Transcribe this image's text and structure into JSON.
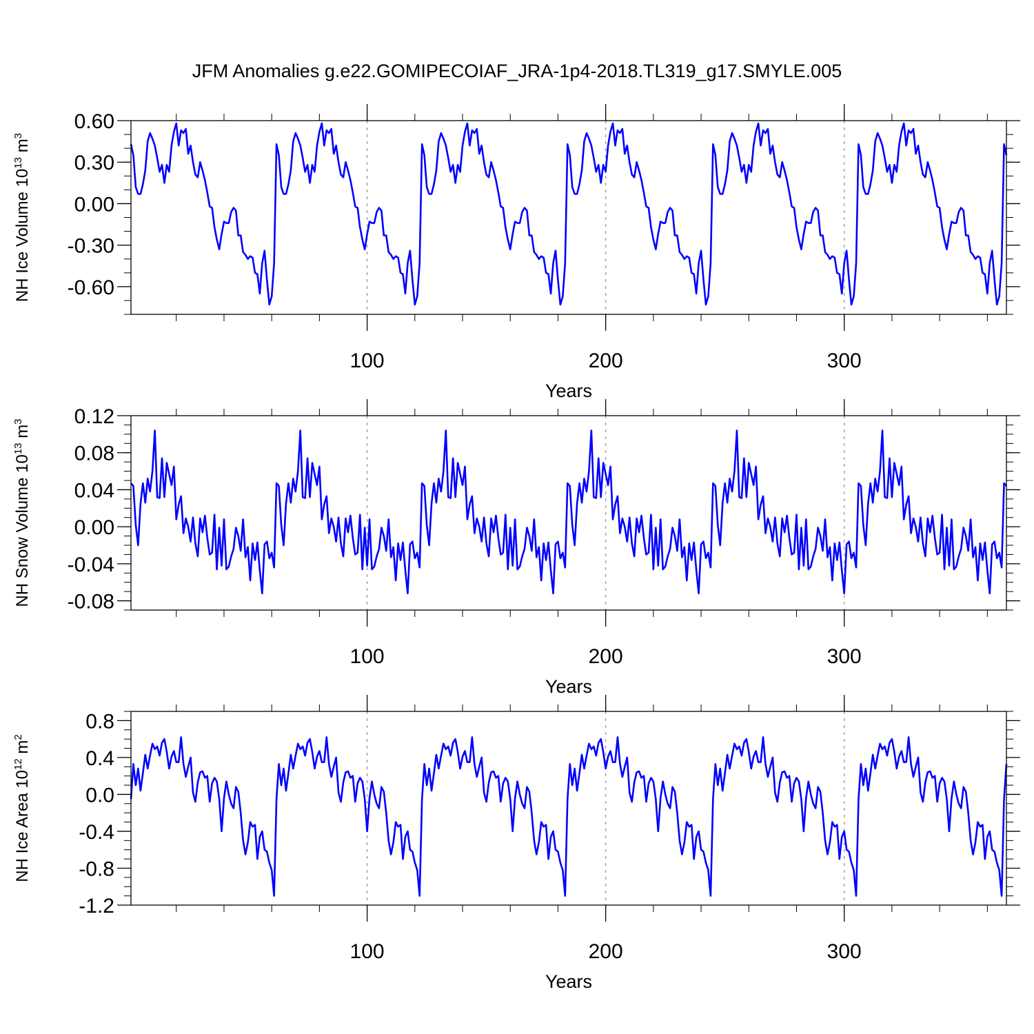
{
  "title": "JFM Anomalies g.e22.GOMIPECOIAF_JRA-1p4-2018.TL319_g17.SMYLE.005",
  "colors": {
    "series": "#0000ff",
    "axis": "#000000",
    "grid": "#a0a0a0"
  },
  "chart_data": [
    {
      "type": "line",
      "panel": "nh-ice-volume",
      "ylabel_main": "NH Ice Volume 10",
      "ylabel_exp": "13",
      "ylabel_unit": " m",
      "ylabel_unit_exp": "3",
      "xlabel": "Years",
      "xlim": [
        1,
        368
      ],
      "ylim": [
        -0.8,
        0.6
      ],
      "yticks": [
        0.6,
        0.3,
        0.0,
        -0.3,
        -0.6
      ],
      "ytick_labels": [
        "0.60",
        "0.30",
        "0.00",
        "-0.30",
        "-0.60"
      ],
      "yminor_step": 0.1,
      "xticks": [
        100,
        200,
        300
      ],
      "xtick_labels": [
        "100",
        "200",
        "300"
      ],
      "xminor_step": 20,
      "grid_x": [
        100,
        200,
        300
      ],
      "period": 61,
      "cycle_values": [
        0.43,
        0.35,
        0.12,
        0.07,
        0.07,
        0.14,
        0.24,
        0.45,
        0.51,
        0.47,
        0.42,
        0.33,
        0.23,
        0.28,
        0.15,
        0.28,
        0.23,
        0.42,
        0.52,
        0.58,
        0.42,
        0.53,
        0.51,
        0.54,
        0.36,
        0.42,
        0.3,
        0.21,
        0.19,
        0.3,
        0.24,
        0.17,
        0.08,
        -0.02,
        -0.03,
        -0.17,
        -0.26,
        -0.33,
        -0.22,
        -0.13,
        -0.14,
        -0.14,
        -0.06,
        -0.03,
        -0.05,
        -0.23,
        -0.23,
        -0.35,
        -0.37,
        -0.4,
        -0.38,
        -0.39,
        -0.5,
        -0.51,
        -0.65,
        -0.43,
        -0.34,
        -0.55,
        -0.73,
        -0.67,
        -0.43
      ],
      "x": [
        1,
        2,
        3,
        4,
        5,
        6,
        7,
        8,
        9,
        10,
        11,
        12,
        13,
        14,
        15,
        16,
        17,
        18,
        19,
        20,
        21,
        22,
        23,
        24,
        25,
        26,
        27,
        28,
        29,
        30,
        31,
        32,
        33,
        34,
        35,
        36,
        37,
        38,
        39,
        40,
        41,
        42,
        43,
        44,
        45,
        46,
        47,
        48,
        49,
        50,
        51,
        52,
        53,
        54,
        55,
        56,
        57,
        58,
        59,
        60,
        61,
        62,
        63,
        64,
        65,
        66,
        67,
        68,
        69,
        70,
        71,
        72,
        73,
        74,
        75,
        76,
        77,
        78,
        79,
        80,
        81,
        82,
        83,
        84,
        85,
        86,
        87,
        88,
        89,
        90,
        91,
        92,
        93,
        94,
        95,
        96,
        97,
        98,
        99,
        100,
        101,
        102,
        103,
        104,
        105,
        106,
        107,
        108,
        109,
        110,
        111,
        112,
        113,
        114,
        115,
        116,
        117,
        118,
        119,
        120,
        121,
        122,
        123,
        124,
        125,
        126,
        127,
        128,
        129,
        130,
        131,
        132,
        133,
        134,
        135,
        136,
        137,
        138,
        139,
        140,
        141,
        142,
        143,
        144,
        145,
        146,
        147,
        148,
        149,
        150,
        151,
        152,
        153,
        154,
        155,
        156,
        157,
        158,
        159,
        160,
        161,
        162,
        163,
        164,
        165,
        166,
        167,
        168,
        169,
        170,
        171,
        172,
        173,
        174,
        175,
        176,
        177,
        178,
        179,
        180,
        181,
        182,
        183,
        184,
        185,
        186,
        187,
        188,
        189,
        190,
        191,
        192,
        193,
        194,
        195,
        196,
        197,
        198,
        199,
        200,
        201,
        202,
        203,
        204,
        205,
        206,
        207,
        208,
        209,
        210,
        211,
        212,
        213,
        214,
        215,
        216,
        217,
        218,
        219,
        220,
        221,
        222,
        223,
        224,
        225,
        226,
        227,
        228,
        229,
        230,
        231,
        232,
        233,
        234,
        235,
        236,
        237,
        238,
        239,
        240,
        241,
        242,
        243,
        244,
        245,
        246,
        247,
        248,
        249,
        250,
        251,
        252,
        253,
        254,
        255,
        256,
        257,
        258,
        259,
        260,
        261,
        262,
        263,
        264,
        265,
        266,
        267,
        268,
        269,
        270,
        271,
        272,
        273,
        274,
        275,
        276,
        277,
        278,
        279,
        280,
        281,
        282,
        283,
        284,
        285,
        286,
        287,
        288,
        289,
        290,
        291,
        292,
        293,
        294,
        295,
        296,
        297,
        298,
        299,
        300,
        301,
        302,
        303,
        304,
        305,
        306,
        307,
        308,
        309,
        310,
        311,
        312,
        313,
        314,
        315,
        316,
        317,
        318,
        319,
        320,
        321,
        322,
        323,
        324,
        325,
        326,
        327,
        328,
        329,
        330,
        331,
        332,
        333,
        334,
        335,
        336,
        337,
        338,
        339,
        340,
        341,
        342,
        343,
        344,
        345,
        346,
        347,
        348,
        349,
        350,
        351,
        352,
        353,
        354,
        355,
        356,
        357,
        358,
        359,
        360,
        361,
        362,
        363,
        364,
        365,
        366,
        367,
        368
      ]
    },
    {
      "type": "line",
      "panel": "nh-snow-volume",
      "ylabel_main": "NH Snow Volume 10",
      "ylabel_exp": "13",
      "ylabel_unit": " m",
      "ylabel_unit_exp": "3",
      "xlabel": "Years",
      "xlim": [
        1,
        368
      ],
      "ylim": [
        -0.09,
        0.12
      ],
      "yticks": [
        0.12,
        0.08,
        0.04,
        0.0,
        -0.04,
        -0.08
      ],
      "ytick_labels": [
        "0.12",
        "0.08",
        "0.04",
        "0.00",
        "-0.04",
        "-0.08"
      ],
      "yminor_step": 0.01,
      "xticks": [
        100,
        200,
        300
      ],
      "xtick_labels": [
        "100",
        "200",
        "300"
      ],
      "xminor_step": 20,
      "grid_x": [
        100,
        200,
        300
      ],
      "period": 61,
      "cycle_values": [
        0.047,
        0.044,
        0.002,
        -0.02,
        0.025,
        0.047,
        0.026,
        0.052,
        0.038,
        0.06,
        0.104,
        0.032,
        0.031,
        0.074,
        0.032,
        0.069,
        0.057,
        0.045,
        0.065,
        0.008,
        0.024,
        0.033,
        -0.007,
        0.009,
        0.0,
        -0.016,
        0.01,
        -0.018,
        -0.032,
        0.009,
        -0.006,
        0.012,
        -0.012,
        -0.03,
        -0.028,
        0.013,
        -0.046,
        -0.001,
        -0.042,
        0.008,
        -0.046,
        -0.043,
        -0.032,
        -0.024,
        -0.001,
        -0.01,
        -0.026,
        0.008,
        -0.033,
        -0.022,
        -0.058,
        -0.018,
        -0.036,
        -0.017,
        -0.047,
        -0.072,
        -0.019,
        -0.016,
        -0.034,
        -0.028,
        -0.044
      ],
      "x": [
        1,
        2,
        3,
        4,
        5,
        6,
        7,
        8,
        9,
        10,
        11,
        12,
        13,
        14,
        15,
        16,
        17,
        18,
        19,
        20,
        21,
        22,
        23,
        24,
        25,
        26,
        27,
        28,
        29,
        30,
        31,
        32,
        33,
        34,
        35,
        36,
        37,
        38,
        39,
        40,
        41,
        42,
        43,
        44,
        45,
        46,
        47,
        48,
        49,
        50,
        51,
        52,
        53,
        54,
        55,
        56,
        57,
        58,
        59,
        60,
        61,
        62,
        63,
        64,
        65,
        66,
        67,
        68,
        69,
        70,
        71,
        72,
        73,
        74,
        75,
        76,
        77,
        78,
        79,
        80,
        81,
        82,
        83,
        84,
        85,
        86,
        87,
        88,
        89,
        90,
        91,
        92,
        93,
        94,
        95,
        96,
        97,
        98,
        99,
        100,
        101,
        102,
        103,
        104,
        105,
        106,
        107,
        108,
        109,
        110,
        111,
        112,
        113,
        114,
        115,
        116,
        117,
        118,
        119,
        120,
        121,
        122,
        123,
        124,
        125,
        126,
        127,
        128,
        129,
        130,
        131,
        132,
        133,
        134,
        135,
        136,
        137,
        138,
        139,
        140,
        141,
        142,
        143,
        144,
        145,
        146,
        147,
        148,
        149,
        150,
        151,
        152,
        153,
        154,
        155,
        156,
        157,
        158,
        159,
        160,
        161,
        162,
        163,
        164,
        165,
        166,
        167,
        168,
        169,
        170,
        171,
        172,
        173,
        174,
        175,
        176,
        177,
        178,
        179,
        180,
        181,
        182,
        183,
        184,
        185,
        186,
        187,
        188,
        189,
        190,
        191,
        192,
        193,
        194,
        195,
        196,
        197,
        198,
        199,
        200,
        201,
        202,
        203,
        204,
        205,
        206,
        207,
        208,
        209,
        210,
        211,
        212,
        213,
        214,
        215,
        216,
        217,
        218,
        219,
        220,
        221,
        222,
        223,
        224,
        225,
        226,
        227,
        228,
        229,
        230,
        231,
        232,
        233,
        234,
        235,
        236,
        237,
        238,
        239,
        240,
        241,
        242,
        243,
        244,
        245,
        246,
        247,
        248,
        249,
        250,
        251,
        252,
        253,
        254,
        255,
        256,
        257,
        258,
        259,
        260,
        261,
        262,
        263,
        264,
        265,
        266,
        267,
        268,
        269,
        270,
        271,
        272,
        273,
        274,
        275,
        276,
        277,
        278,
        279,
        280,
        281,
        282,
        283,
        284,
        285,
        286,
        287,
        288,
        289,
        290,
        291,
        292,
        293,
        294,
        295,
        296,
        297,
        298,
        299,
        300,
        301,
        302,
        303,
        304,
        305,
        306,
        307,
        308,
        309,
        310,
        311,
        312,
        313,
        314,
        315,
        316,
        317,
        318,
        319,
        320,
        321,
        322,
        323,
        324,
        325,
        326,
        327,
        328,
        329,
        330,
        331,
        332,
        333,
        334,
        335,
        336,
        337,
        338,
        339,
        340,
        341,
        342,
        343,
        344,
        345,
        346,
        347,
        348,
        349,
        350,
        351,
        352,
        353,
        354,
        355,
        356,
        357,
        358,
        359,
        360,
        361,
        362,
        363,
        364,
        365,
        366,
        367,
        368
      ]
    },
    {
      "type": "line",
      "panel": "nh-ice-area",
      "ylabel_main": "NH Ice Area 10",
      "ylabel_exp": "12",
      "ylabel_unit": " m",
      "ylabel_unit_exp": "2",
      "xlabel": "Years",
      "xlim": [
        1,
        368
      ],
      "ylim": [
        -1.2,
        0.9
      ],
      "yticks": [
        0.8,
        0.4,
        0.0,
        -0.4,
        -0.8,
        -1.2
      ],
      "ytick_labels": [
        "0.8",
        "0.4",
        "0.0",
        "-0.4",
        "-0.8",
        "-1.2"
      ],
      "yminor_step": 0.1,
      "xticks": [
        100,
        200,
        300
      ],
      "xtick_labels": [
        "100",
        "200",
        "300"
      ],
      "xminor_step": 20,
      "grid_x": [
        100,
        200,
        300
      ],
      "period": 61,
      "cycle_values": [
        -0.05,
        0.33,
        0.1,
        0.28,
        0.04,
        0.23,
        0.43,
        0.28,
        0.42,
        0.55,
        0.49,
        0.52,
        0.42,
        0.56,
        0.6,
        0.46,
        0.28,
        0.41,
        0.47,
        0.35,
        0.35,
        0.62,
        0.33,
        0.19,
        0.3,
        0.4,
        0.02,
        -0.08,
        0.13,
        0.24,
        0.25,
        0.18,
        0.2,
        -0.08,
        0.12,
        0.18,
        0.14,
        -0.05,
        -0.4,
        -0.04,
        0.14,
        0.0,
        -0.1,
        -0.15,
        0.08,
        0.03,
        -0.2,
        -0.5,
        -0.65,
        -0.52,
        -0.3,
        -0.35,
        -0.33,
        -0.7,
        -0.46,
        -0.4,
        -0.6,
        -0.62,
        -0.74,
        -0.82,
        -1.1
      ],
      "x": [
        1,
        2,
        3,
        4,
        5,
        6,
        7,
        8,
        9,
        10,
        11,
        12,
        13,
        14,
        15,
        16,
        17,
        18,
        19,
        20,
        21,
        22,
        23,
        24,
        25,
        26,
        27,
        28,
        29,
        30,
        31,
        32,
        33,
        34,
        35,
        36,
        37,
        38,
        39,
        40,
        41,
        42,
        43,
        44,
        45,
        46,
        47,
        48,
        49,
        50,
        51,
        52,
        53,
        54,
        55,
        56,
        57,
        58,
        59,
        60,
        61,
        62,
        63,
        64,
        65,
        66,
        67,
        68,
        69,
        70,
        71,
        72,
        73,
        74,
        75,
        76,
        77,
        78,
        79,
        80,
        81,
        82,
        83,
        84,
        85,
        86,
        87,
        88,
        89,
        90,
        91,
        92,
        93,
        94,
        95,
        96,
        97,
        98,
        99,
        100,
        101,
        102,
        103,
        104,
        105,
        106,
        107,
        108,
        109,
        110,
        111,
        112,
        113,
        114,
        115,
        116,
        117,
        118,
        119,
        120,
        121,
        122,
        123,
        124,
        125,
        126,
        127,
        128,
        129,
        130,
        131,
        132,
        133,
        134,
        135,
        136,
        137,
        138,
        139,
        140,
        141,
        142,
        143,
        144,
        145,
        146,
        147,
        148,
        149,
        150,
        151,
        152,
        153,
        154,
        155,
        156,
        157,
        158,
        159,
        160,
        161,
        162,
        163,
        164,
        165,
        166,
        167,
        168,
        169,
        170,
        171,
        172,
        173,
        174,
        175,
        176,
        177,
        178,
        179,
        180,
        181,
        182,
        183,
        184,
        185,
        186,
        187,
        188,
        189,
        190,
        191,
        192,
        193,
        194,
        195,
        196,
        197,
        198,
        199,
        200,
        201,
        202,
        203,
        204,
        205,
        206,
        207,
        208,
        209,
        210,
        211,
        212,
        213,
        214,
        215,
        216,
        217,
        218,
        219,
        220,
        221,
        222,
        223,
        224,
        225,
        226,
        227,
        228,
        229,
        230,
        231,
        232,
        233,
        234,
        235,
        236,
        237,
        238,
        239,
        240,
        241,
        242,
        243,
        244,
        245,
        246,
        247,
        248,
        249,
        250,
        251,
        252,
        253,
        254,
        255,
        256,
        257,
        258,
        259,
        260,
        261,
        262,
        263,
        264,
        265,
        266,
        267,
        268,
        269,
        270,
        271,
        272,
        273,
        274,
        275,
        276,
        277,
        278,
        279,
        280,
        281,
        282,
        283,
        284,
        285,
        286,
        287,
        288,
        289,
        290,
        291,
        292,
        293,
        294,
        295,
        296,
        297,
        298,
        299,
        300,
        301,
        302,
        303,
        304,
        305,
        306,
        307,
        308,
        309,
        310,
        311,
        312,
        313,
        314,
        315,
        316,
        317,
        318,
        319,
        320,
        321,
        322,
        323,
        324,
        325,
        326,
        327,
        328,
        329,
        330,
        331,
        332,
        333,
        334,
        335,
        336,
        337,
        338,
        339,
        340,
        341,
        342,
        343,
        344,
        345,
        346,
        347,
        348,
        349,
        350,
        351,
        352,
        353,
        354,
        355,
        356,
        357,
        358,
        359,
        360,
        361,
        362,
        363,
        364,
        365,
        366,
        367,
        368
      ]
    }
  ]
}
